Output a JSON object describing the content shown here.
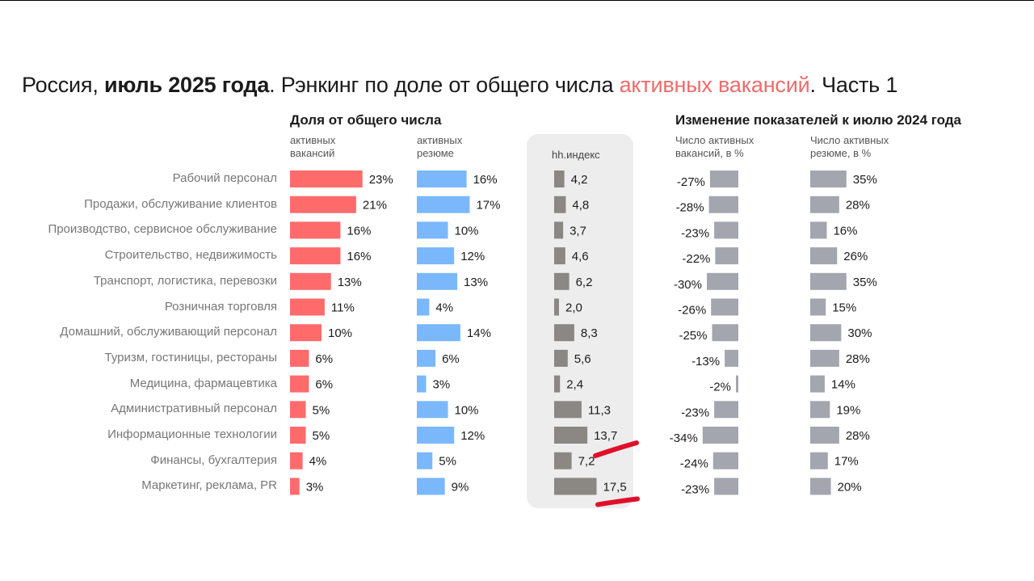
{
  "title": {
    "part1": "Россия, ",
    "bold": "июль 2025 года",
    "part2": ". Рэнкинг по доле от общего числа ",
    "accent": "активных вакансий",
    "part3": ". Часть 1"
  },
  "section_left_title": "Доля от общего числа",
  "section_right_title": "Изменение показателей к июлю 2024 года",
  "col_labels": {
    "vacancies": [
      "активных",
      "вакансий"
    ],
    "resumes": [
      "активных",
      "резюме"
    ],
    "hh_index": "hh.индекс",
    "vac_change": [
      "Число активных",
      "вакансий, в %"
    ],
    "res_change": [
      "Число активных",
      "резюме, в %"
    ]
  },
  "colors": {
    "vacancies": "#ff6b6b",
    "resumes": "#7ab8fb",
    "hh_index": "#8b8782",
    "change": "#a3a6ae",
    "panel": "#ededed",
    "highlight": "#e0102b"
  },
  "chart_data": {
    "type": "bar",
    "categories": [
      "Рабочий персонал",
      "Продажи, обслуживание клиентов",
      "Производство, сервисное обслуживание",
      "Строительство, недвижимость",
      "Транспорт, логистика, перевозки",
      "Розничная торговля",
      "Домашний, обслуживающий персонал",
      "Туризм, гостиницы, рестораны",
      "Медицина, фармацевтика",
      "Административный персонал",
      "Информационные технологии",
      "Финансы, бухгалтерия",
      "Маркетинг, реклама, PR"
    ],
    "series": [
      {
        "name": "активных вакансий",
        "values": [
          23,
          21,
          16,
          16,
          13,
          11,
          10,
          6,
          6,
          5,
          5,
          4,
          3
        ],
        "labels": [
          "23%",
          "21%",
          "16%",
          "16%",
          "13%",
          "11%",
          "10%",
          "6%",
          "6%",
          "5%",
          "5%",
          "4%",
          "3%"
        ]
      },
      {
        "name": "активных резюме",
        "values": [
          16,
          17,
          10,
          12,
          13,
          4,
          14,
          6,
          3,
          10,
          12,
          5,
          9
        ],
        "labels": [
          "16%",
          "17%",
          "10%",
          "12%",
          "13%",
          "4%",
          "14%",
          "6%",
          "3%",
          "10%",
          "12%",
          "5%",
          "9%"
        ]
      },
      {
        "name": "hh.индекс",
        "values": [
          4.2,
          4.8,
          3.7,
          4.6,
          6.2,
          2.0,
          8.3,
          5.6,
          2.4,
          11.3,
          13.7,
          7.2,
          17.5
        ],
        "labels": [
          "4,2",
          "4,8",
          "3,7",
          "4,6",
          "6,2",
          "2,0",
          "8,3",
          "5,6",
          "2,4",
          "11,3",
          "13,7",
          "7,2",
          "17,5"
        ]
      },
      {
        "name": "Число активных вакансий, в %",
        "values": [
          -27,
          -28,
          -23,
          -22,
          -30,
          -26,
          -25,
          -13,
          -2,
          -23,
          -34,
          -24,
          -23
        ],
        "labels": [
          "-27%",
          "-28%",
          "-23%",
          "-22%",
          "-30%",
          "-26%",
          "-25%",
          "-13%",
          "-2%",
          "-23%",
          "-34%",
          "-24%",
          "-23%"
        ]
      },
      {
        "name": "Число активных резюме, в %",
        "values": [
          35,
          28,
          16,
          26,
          35,
          15,
          30,
          28,
          14,
          19,
          28,
          17,
          20
        ],
        "labels": [
          "35%",
          "28%",
          "16%",
          "26%",
          "35%",
          "15%",
          "30%",
          "28%",
          "14%",
          "19%",
          "28%",
          "17%",
          "20%"
        ]
      }
    ],
    "highlighted": [
      "Информационные технологии",
      "Маркетинг, реклама, PR"
    ]
  }
}
